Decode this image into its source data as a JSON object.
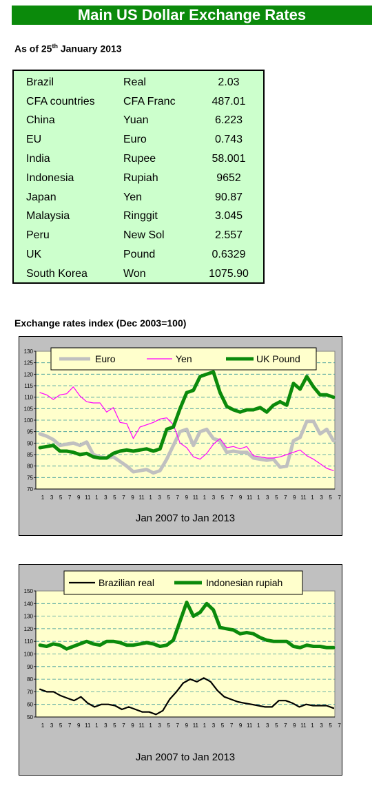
{
  "header": {
    "title": "Main US Dollar Exchange Rates"
  },
  "as_of": {
    "prefix": "As of 25",
    "sup": "th",
    "suffix": " January 2013"
  },
  "rates": [
    {
      "country": "Brazil",
      "currency": "Real",
      "value": "2.03"
    },
    {
      "country": "CFA countries",
      "currency": "CFA Franc",
      "value": "487.01"
    },
    {
      "country": "China",
      "currency": "Yuan",
      "value": "6.223"
    },
    {
      "country": "EU",
      "currency": "Euro",
      "value": "0.743"
    },
    {
      "country": "India",
      "currency": "Rupee",
      "value": "58.001"
    },
    {
      "country": "Indonesia",
      "currency": "Rupiah",
      "value": "9652"
    },
    {
      "country": "Japan",
      "currency": "Yen",
      "value": "90.87"
    },
    {
      "country": "Malaysia",
      "currency": "Ringgit",
      "value": "3.045"
    },
    {
      "country": "Peru",
      "currency": "New Sol",
      "value": "2.557"
    },
    {
      "country": "UK",
      "currency": "Pound",
      "value": "0.6329"
    },
    {
      "country": "South Korea",
      "currency": "Won",
      "value": "1075.90"
    }
  ],
  "index_section_title": "Exchange rates index (Dec 2003=100)",
  "chart_data": [
    {
      "type": "line",
      "title": "",
      "xlabel": "Jan 2007 to Jan 2013",
      "ylabel": "",
      "ylim": [
        70,
        130
      ],
      "yticks": [
        70,
        75,
        80,
        85,
        90,
        95,
        100,
        105,
        110,
        115,
        120,
        125,
        130
      ],
      "xtick_labels": [
        "1",
        "3",
        "5",
        "7",
        "9",
        "11",
        "1",
        "3",
        "5",
        "7",
        "9",
        "11",
        "1",
        "3",
        "5",
        "7",
        "9",
        "11",
        "1",
        "3",
        "5",
        "7",
        "9",
        "11",
        "1",
        "3",
        "5",
        "7",
        "9",
        "11",
        "1",
        "3",
        "5",
        "7"
      ],
      "grid": true,
      "legend_position": "top",
      "series": [
        {
          "name": "Euro",
          "color": "#c0c0c0",
          "width": 5,
          "values": [
            94,
            93,
            91.5,
            89,
            89.5,
            90,
            89,
            90.5,
            85,
            84,
            83.5,
            84,
            82,
            80,
            77.5,
            78,
            78.5,
            77,
            78,
            83,
            89,
            95,
            96,
            89,
            95,
            96,
            92,
            91,
            86,
            86.5,
            86,
            86,
            83.5,
            83,
            82.5,
            83,
            79.5,
            80,
            91,
            92.5,
            99.5,
            99.5,
            94,
            96,
            91
          ]
        },
        {
          "name": "Yen",
          "color": "#ff00ff",
          "width": 1.2,
          "values": [
            112,
            111,
            109,
            111,
            111.5,
            114.5,
            110.5,
            108,
            107.5,
            107.5,
            103.5,
            105.5,
            99,
            98.5,
            92,
            97,
            98,
            99,
            100.5,
            101,
            98,
            90,
            88,
            84,
            83,
            85.5,
            89.5,
            92,
            88,
            88.5,
            87.5,
            88.5,
            84.5,
            84,
            83.5,
            83.5,
            84,
            85,
            86,
            87,
            84.5,
            83,
            81,
            79,
            78
          ]
        },
        {
          "name": "UK Pound",
          "color": "#0b8a0b",
          "width": 5,
          "values": [
            88,
            88.5,
            89,
            86.5,
            86.5,
            86,
            85,
            85.5,
            84,
            83.5,
            83.5,
            85.5,
            86.5,
            87,
            86.5,
            87,
            87.5,
            86.5,
            87.5,
            96,
            97,
            105,
            112,
            113,
            119,
            120,
            121,
            112,
            106,
            104.5,
            103.5,
            104.5,
            104.5,
            105.5,
            103.5,
            106.5,
            108,
            106.5,
            116,
            113.5,
            119,
            114.5,
            111,
            111,
            110
          ]
        }
      ]
    },
    {
      "type": "line",
      "title": "",
      "xlabel": "Jan 2007 to Jan 2013",
      "ylabel": "",
      "ylim": [
        50,
        150
      ],
      "yticks": [
        50,
        60,
        70,
        80,
        90,
        100,
        110,
        120,
        130,
        140,
        150
      ],
      "xtick_labels": [
        "1",
        "3",
        "5",
        "7",
        "9",
        "11",
        "1",
        "3",
        "5",
        "7",
        "9",
        "11",
        "1",
        "3",
        "5",
        "7",
        "9",
        "11",
        "1",
        "3",
        "5",
        "7",
        "9",
        "11",
        "1",
        "3",
        "5",
        "7",
        "9",
        "11",
        "1",
        "3",
        "5",
        "7"
      ],
      "grid": true,
      "legend_position": "top",
      "series": [
        {
          "name": "Brazilian real",
          "color": "#000000",
          "width": 2.2,
          "values": [
            72,
            70,
            70,
            67,
            65,
            63,
            66,
            61,
            58,
            60,
            60,
            59,
            56,
            58,
            56,
            54,
            54,
            52,
            55,
            64,
            70,
            77,
            80,
            78,
            81,
            78,
            71,
            66,
            64,
            62,
            61,
            60,
            59,
            58,
            58,
            63,
            63,
            61,
            58,
            60,
            59,
            59,
            59,
            57
          ]
        },
        {
          "name": "Indonesian rupiah",
          "color": "#0b8a0b",
          "width": 5,
          "values": [
            107,
            106,
            108,
            107,
            104,
            106,
            108,
            110,
            108,
            107,
            110,
            110,
            109,
            107,
            107,
            108,
            109,
            108,
            106,
            107,
            111,
            126,
            141,
            130,
            133,
            140,
            135,
            121,
            120,
            119,
            116,
            117,
            116,
            113,
            111,
            110,
            110,
            110,
            106,
            105,
            107,
            106,
            106,
            105,
            105
          ]
        }
      ]
    }
  ]
}
